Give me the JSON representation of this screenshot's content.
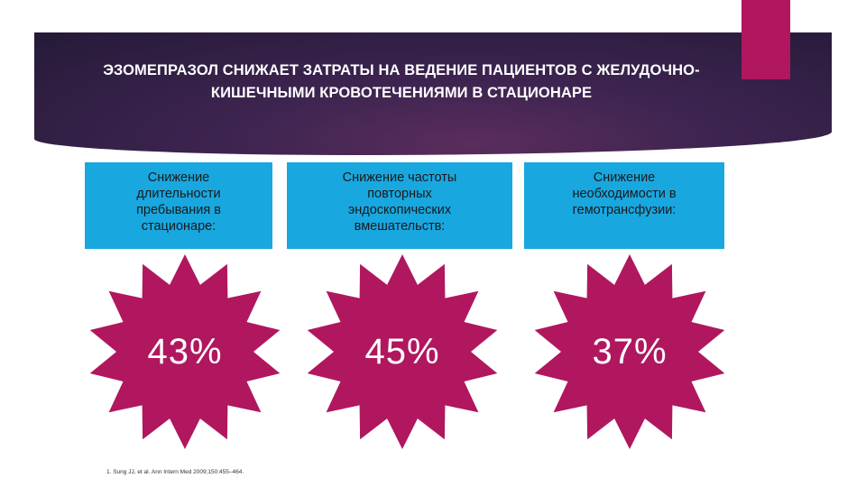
{
  "slide": {
    "title": "ЭЗОМЕПРАЗОЛ СНИЖАЕТ ЗАТРАТЫ НА ВЕДЕНИЕ ПАЦИЕНТОВ С ЖЕЛУДОЧНО-КИШЕЧНЫМИ КРОВОТЕЧЕНИЯМИ В СТАЦИОНАРЕ",
    "cards": [
      {
        "label": "Снижение длительности пребывания в стационаре:",
        "value": "43%"
      },
      {
        "label": "Снижение частоты повторных эндоскопических вмешательств:",
        "value": "45%"
      },
      {
        "label": "Снижение необходимости в гемотрансфузии:",
        "value": "37%"
      }
    ],
    "footnote": "1. Sung JJ, et al. Ann Intern Med 2009;150:455–464."
  },
  "colors": {
    "banner": "#3d2450",
    "accent": "#b0175f",
    "card": "#19a7e0",
    "star": "#b0175f"
  }
}
